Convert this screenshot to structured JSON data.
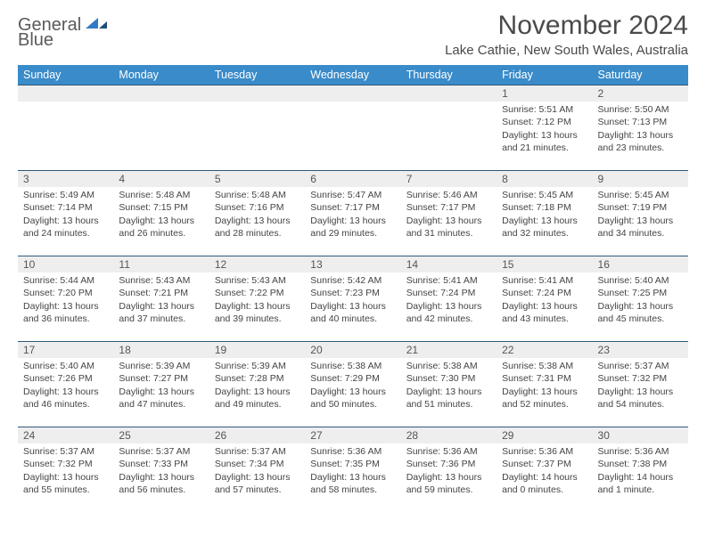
{
  "logo": {
    "word1": "General",
    "word2": "Blue"
  },
  "title": "November 2024",
  "subtitle": "Lake Cathie, New South Wales, Australia",
  "colors": {
    "header_bg": "#3a8bc9",
    "header_text": "#ffffff",
    "daynum_bg": "#eeeeee",
    "row_border": "#2f5a7a",
    "logo_blue": "#2f7bc4",
    "logo_gray": "#5a5a5a"
  },
  "weekdays": [
    "Sunday",
    "Monday",
    "Tuesday",
    "Wednesday",
    "Thursday",
    "Friday",
    "Saturday"
  ],
  "weeks": [
    [
      null,
      null,
      null,
      null,
      null,
      {
        "n": "1",
        "sunrise": "5:51 AM",
        "sunset": "7:12 PM",
        "daylight": "13 hours and 21 minutes."
      },
      {
        "n": "2",
        "sunrise": "5:50 AM",
        "sunset": "7:13 PM",
        "daylight": "13 hours and 23 minutes."
      }
    ],
    [
      {
        "n": "3",
        "sunrise": "5:49 AM",
        "sunset": "7:14 PM",
        "daylight": "13 hours and 24 minutes."
      },
      {
        "n": "4",
        "sunrise": "5:48 AM",
        "sunset": "7:15 PM",
        "daylight": "13 hours and 26 minutes."
      },
      {
        "n": "5",
        "sunrise": "5:48 AM",
        "sunset": "7:16 PM",
        "daylight": "13 hours and 28 minutes."
      },
      {
        "n": "6",
        "sunrise": "5:47 AM",
        "sunset": "7:17 PM",
        "daylight": "13 hours and 29 minutes."
      },
      {
        "n": "7",
        "sunrise": "5:46 AM",
        "sunset": "7:17 PM",
        "daylight": "13 hours and 31 minutes."
      },
      {
        "n": "8",
        "sunrise": "5:45 AM",
        "sunset": "7:18 PM",
        "daylight": "13 hours and 32 minutes."
      },
      {
        "n": "9",
        "sunrise": "5:45 AM",
        "sunset": "7:19 PM",
        "daylight": "13 hours and 34 minutes."
      }
    ],
    [
      {
        "n": "10",
        "sunrise": "5:44 AM",
        "sunset": "7:20 PM",
        "daylight": "13 hours and 36 minutes."
      },
      {
        "n": "11",
        "sunrise": "5:43 AM",
        "sunset": "7:21 PM",
        "daylight": "13 hours and 37 minutes."
      },
      {
        "n": "12",
        "sunrise": "5:43 AM",
        "sunset": "7:22 PM",
        "daylight": "13 hours and 39 minutes."
      },
      {
        "n": "13",
        "sunrise": "5:42 AM",
        "sunset": "7:23 PM",
        "daylight": "13 hours and 40 minutes."
      },
      {
        "n": "14",
        "sunrise": "5:41 AM",
        "sunset": "7:24 PM",
        "daylight": "13 hours and 42 minutes."
      },
      {
        "n": "15",
        "sunrise": "5:41 AM",
        "sunset": "7:24 PM",
        "daylight": "13 hours and 43 minutes."
      },
      {
        "n": "16",
        "sunrise": "5:40 AM",
        "sunset": "7:25 PM",
        "daylight": "13 hours and 45 minutes."
      }
    ],
    [
      {
        "n": "17",
        "sunrise": "5:40 AM",
        "sunset": "7:26 PM",
        "daylight": "13 hours and 46 minutes."
      },
      {
        "n": "18",
        "sunrise": "5:39 AM",
        "sunset": "7:27 PM",
        "daylight": "13 hours and 47 minutes."
      },
      {
        "n": "19",
        "sunrise": "5:39 AM",
        "sunset": "7:28 PM",
        "daylight": "13 hours and 49 minutes."
      },
      {
        "n": "20",
        "sunrise": "5:38 AM",
        "sunset": "7:29 PM",
        "daylight": "13 hours and 50 minutes."
      },
      {
        "n": "21",
        "sunrise": "5:38 AM",
        "sunset": "7:30 PM",
        "daylight": "13 hours and 51 minutes."
      },
      {
        "n": "22",
        "sunrise": "5:38 AM",
        "sunset": "7:31 PM",
        "daylight": "13 hours and 52 minutes."
      },
      {
        "n": "23",
        "sunrise": "5:37 AM",
        "sunset": "7:32 PM",
        "daylight": "13 hours and 54 minutes."
      }
    ],
    [
      {
        "n": "24",
        "sunrise": "5:37 AM",
        "sunset": "7:32 PM",
        "daylight": "13 hours and 55 minutes."
      },
      {
        "n": "25",
        "sunrise": "5:37 AM",
        "sunset": "7:33 PM",
        "daylight": "13 hours and 56 minutes."
      },
      {
        "n": "26",
        "sunrise": "5:37 AM",
        "sunset": "7:34 PM",
        "daylight": "13 hours and 57 minutes."
      },
      {
        "n": "27",
        "sunrise": "5:36 AM",
        "sunset": "7:35 PM",
        "daylight": "13 hours and 58 minutes."
      },
      {
        "n": "28",
        "sunrise": "5:36 AM",
        "sunset": "7:36 PM",
        "daylight": "13 hours and 59 minutes."
      },
      {
        "n": "29",
        "sunrise": "5:36 AM",
        "sunset": "7:37 PM",
        "daylight": "14 hours and 0 minutes."
      },
      {
        "n": "30",
        "sunrise": "5:36 AM",
        "sunset": "7:38 PM",
        "daylight": "14 hours and 1 minute."
      }
    ]
  ],
  "labels": {
    "sunrise": "Sunrise:",
    "sunset": "Sunset:",
    "daylight": "Daylight:"
  }
}
